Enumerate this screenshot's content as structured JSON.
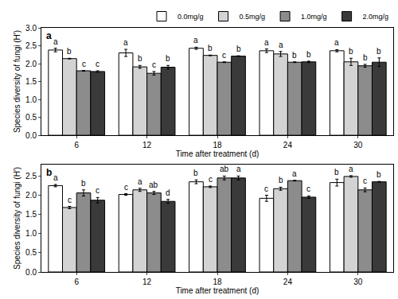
{
  "chart_data": [
    {
      "type": "bar",
      "title": "a",
      "x_label": "Time after treatment (d)",
      "y_label": "Species diversity of fungi (H′)",
      "categories": [
        "6",
        "12",
        "18",
        "24",
        "30"
      ],
      "series": [
        {
          "name": "0.0mg/g",
          "color": "#ffffff",
          "values": [
            2.38,
            2.3,
            2.43,
            2.36,
            2.36
          ],
          "errors": [
            0.05,
            0.1,
            0.03,
            0.05,
            0.03
          ],
          "letters": [
            "a",
            "a",
            "a",
            "a",
            "a"
          ]
        },
        {
          "name": "0.5mg/g",
          "color": "#d3d3d3",
          "values": [
            2.14,
            1.91,
            2.23,
            2.27,
            2.05
          ],
          "errors": [
            0.01,
            0.04,
            0.01,
            0.07,
            0.1
          ],
          "letters": [
            "b",
            "b",
            "b",
            "a",
            "b"
          ]
        },
        {
          "name": "1.0mg/g",
          "color": "#8c8c8c",
          "values": [
            1.8,
            1.73,
            2.04,
            2.04,
            1.94
          ],
          "errors": [
            0.01,
            0.05,
            0.01,
            0.01,
            0.04
          ],
          "letters": [
            "c",
            "c",
            "c",
            "b",
            "b"
          ]
        },
        {
          "name": "2.0mg/g",
          "color": "#3a3a3a",
          "values": [
            1.78,
            1.9,
            2.21,
            2.05,
            2.04
          ],
          "errors": [
            0.02,
            0.05,
            0.01,
            0.02,
            0.12
          ],
          "letters": [
            "c",
            "b",
            "b",
            "b",
            "b"
          ]
        }
      ],
      "ylim": [
        0,
        3.0
      ],
      "yticks": [
        {
          "value": 0,
          "label": "0.0"
        },
        0.5,
        {
          "value": 1,
          "label": "1.0"
        },
        1.5,
        {
          "value": 2,
          "label": "2.0"
        },
        2.5,
        {
          "value": 3,
          "label": "3.0"
        }
      ],
      "legend": "top right",
      "grid": false
    },
    {
      "type": "bar",
      "title": "b",
      "x_label": "Time after treatment (d)",
      "y_label": "Species diversity of fungi (H′)",
      "categories": [
        "6",
        "12",
        "18",
        "24",
        "30"
      ],
      "series": [
        {
          "name": "0.0mg/g",
          "color": "#ffffff",
          "values": [
            2.25,
            2.02,
            2.35,
            1.92,
            2.33
          ],
          "errors": [
            0.03,
            0.02,
            0.05,
            0.08,
            0.09
          ],
          "letters": [
            "a",
            "c",
            "b",
            "c",
            "b"
          ]
        },
        {
          "name": "0.5mg/g",
          "color": "#d3d3d3",
          "values": [
            1.68,
            2.14,
            2.22,
            2.17,
            2.49
          ],
          "errors": [
            0.03,
            0.04,
            0.02,
            0.04,
            0.02
          ],
          "letters": [
            "c",
            "a",
            "c",
            "b",
            "a"
          ]
        },
        {
          "name": "1.0mg/g",
          "color": "#8c8c8c",
          "values": [
            2.06,
            2.06,
            2.45,
            2.38,
            2.14
          ],
          "errors": [
            0.08,
            0.04,
            0.05,
            0.01,
            0.05
          ],
          "letters": [
            "b",
            "ab",
            "ab",
            "a",
            "c"
          ]
        },
        {
          "name": "2.0mg/g",
          "color": "#3a3a3a",
          "values": [
            1.87,
            1.84,
            2.45,
            1.95,
            2.35
          ],
          "errors": [
            0.07,
            0.05,
            0.05,
            0.03,
            0.01
          ],
          "letters": [
            "c",
            "d",
            "a",
            "c",
            "b"
          ]
        }
      ],
      "ylim": [
        0,
        2.8
      ],
      "yticks": [
        {
          "value": 0,
          "label": "0.0"
        },
        0.5,
        {
          "value": 1,
          "label": "1.0"
        },
        1.5,
        {
          "value": 2,
          "label": "2.0"
        },
        2.5
      ],
      "legend": "none",
      "grid": false
    }
  ]
}
